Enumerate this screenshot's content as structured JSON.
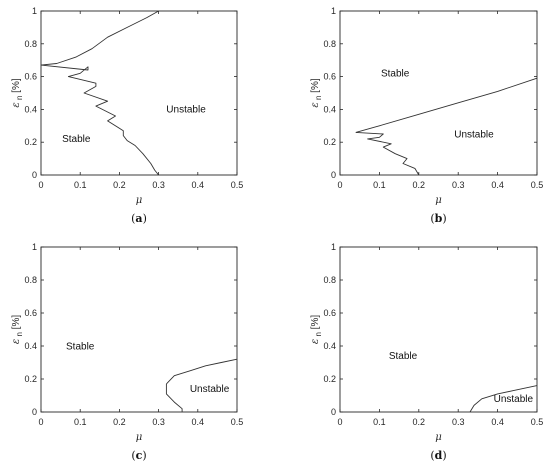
{
  "chart_data": [
    {
      "type": "line",
      "panel_label": "a",
      "xlabel": "μ",
      "ylabel": "ε_n [%]",
      "xlim": [
        0,
        0.5
      ],
      "ylim": [
        0,
        1
      ],
      "x_ticks": [
        "0",
        "0.1",
        "0.2",
        "0.3",
        "0.4",
        "0.5"
      ],
      "y_ticks": [
        "0",
        "0.2",
        "0.4",
        "0.6",
        "0.8",
        "1"
      ],
      "annotations": [
        {
          "text": "Stable",
          "x": 0.09,
          "y": 0.2
        },
        {
          "text": "Unstable",
          "x": 0.37,
          "y": 0.38
        }
      ],
      "curves": [
        [
          [
            0,
            0.67
          ],
          [
            0.04,
            0.68
          ],
          [
            0.09,
            0.72
          ],
          [
            0.13,
            0.77
          ],
          [
            0.17,
            0.84
          ],
          [
            0.22,
            0.9
          ],
          [
            0.27,
            0.96
          ],
          [
            0.3,
            1.0
          ]
        ],
        [
          [
            0,
            0.67
          ],
          [
            0.12,
            0.64
          ],
          [
            0.12,
            0.66
          ],
          [
            0.1,
            0.62
          ],
          [
            0.07,
            0.6
          ],
          [
            0.14,
            0.56
          ],
          [
            0.14,
            0.54
          ],
          [
            0.11,
            0.5
          ],
          [
            0.17,
            0.45
          ],
          [
            0.14,
            0.42
          ],
          [
            0.19,
            0.36
          ],
          [
            0.17,
            0.33
          ],
          [
            0.21,
            0.27
          ],
          [
            0.21,
            0.24
          ],
          [
            0.22,
            0.21
          ],
          [
            0.24,
            0.18
          ],
          [
            0.26,
            0.13
          ],
          [
            0.28,
            0.07
          ],
          [
            0.29,
            0.03
          ],
          [
            0.3,
            0.0
          ]
        ]
      ]
    },
    {
      "type": "line",
      "panel_label": "b",
      "xlabel": "μ",
      "ylabel": "ε_n [%]",
      "xlim": [
        0,
        0.5
      ],
      "ylim": [
        0,
        1
      ],
      "x_ticks": [
        "0",
        "0.1",
        "0.2",
        "0.3",
        "0.4",
        "0.5"
      ],
      "y_ticks": [
        "0",
        "0.2",
        "0.4",
        "0.6",
        "0.8",
        "1"
      ],
      "annotations": [
        {
          "text": "Stable",
          "x": 0.14,
          "y": 0.6
        },
        {
          "text": "Unstable",
          "x": 0.34,
          "y": 0.23
        }
      ],
      "curves": [
        [
          [
            0.04,
            0.26
          ],
          [
            0.1,
            0.3
          ],
          [
            0.2,
            0.37
          ],
          [
            0.3,
            0.44
          ],
          [
            0.4,
            0.51
          ],
          [
            0.5,
            0.59
          ]
        ],
        [
          [
            0.04,
            0.26
          ],
          [
            0.11,
            0.25
          ],
          [
            0.1,
            0.23
          ],
          [
            0.07,
            0.22
          ],
          [
            0.13,
            0.19
          ],
          [
            0.11,
            0.17
          ],
          [
            0.14,
            0.13
          ],
          [
            0.17,
            0.1
          ],
          [
            0.16,
            0.07
          ],
          [
            0.19,
            0.04
          ],
          [
            0.2,
            0.0
          ]
        ]
      ]
    },
    {
      "type": "line",
      "panel_label": "c",
      "xlabel": "μ",
      "ylabel": "ε_n [%]",
      "xlim": [
        0,
        0.5
      ],
      "ylim": [
        0,
        1
      ],
      "x_ticks": [
        "0",
        "0.1",
        "0.2",
        "0.3",
        "0.4",
        "0.5"
      ],
      "y_ticks": [
        "0",
        "0.2",
        "0.4",
        "0.6",
        "0.8",
        "1"
      ],
      "annotations": [
        {
          "text": "Stable",
          "x": 0.1,
          "y": 0.38
        },
        {
          "text": "Unstable",
          "x": 0.43,
          "y": 0.12
        }
      ],
      "curves": [
        [
          [
            0.32,
            0.17
          ],
          [
            0.34,
            0.22
          ],
          [
            0.38,
            0.25
          ],
          [
            0.42,
            0.28
          ],
          [
            0.46,
            0.3
          ],
          [
            0.5,
            0.32
          ]
        ],
        [
          [
            0.32,
            0.17
          ],
          [
            0.32,
            0.11
          ],
          [
            0.34,
            0.06
          ],
          [
            0.36,
            0.02
          ],
          [
            0.36,
            0.0
          ]
        ]
      ]
    },
    {
      "type": "line",
      "panel_label": "d",
      "xlabel": "μ",
      "ylabel": "ε_n [%]",
      "xlim": [
        0,
        0.5
      ],
      "ylim": [
        0,
        1
      ],
      "x_ticks": [
        "0",
        "0.1",
        "0.2",
        "0.3",
        "0.4",
        "0.5"
      ],
      "y_ticks": [
        "0",
        "0.2",
        "0.4",
        "0.6",
        "0.8",
        "1"
      ],
      "annotations": [
        {
          "text": "Stable",
          "x": 0.16,
          "y": 0.32
        },
        {
          "text": "Unstable",
          "x": 0.44,
          "y": 0.06
        }
      ],
      "curves": [
        [
          [
            0.33,
            0.0
          ],
          [
            0.34,
            0.04
          ],
          [
            0.36,
            0.08
          ],
          [
            0.4,
            0.11
          ],
          [
            0.44,
            0.13
          ],
          [
            0.5,
            0.16
          ]
        ]
      ]
    }
  ]
}
